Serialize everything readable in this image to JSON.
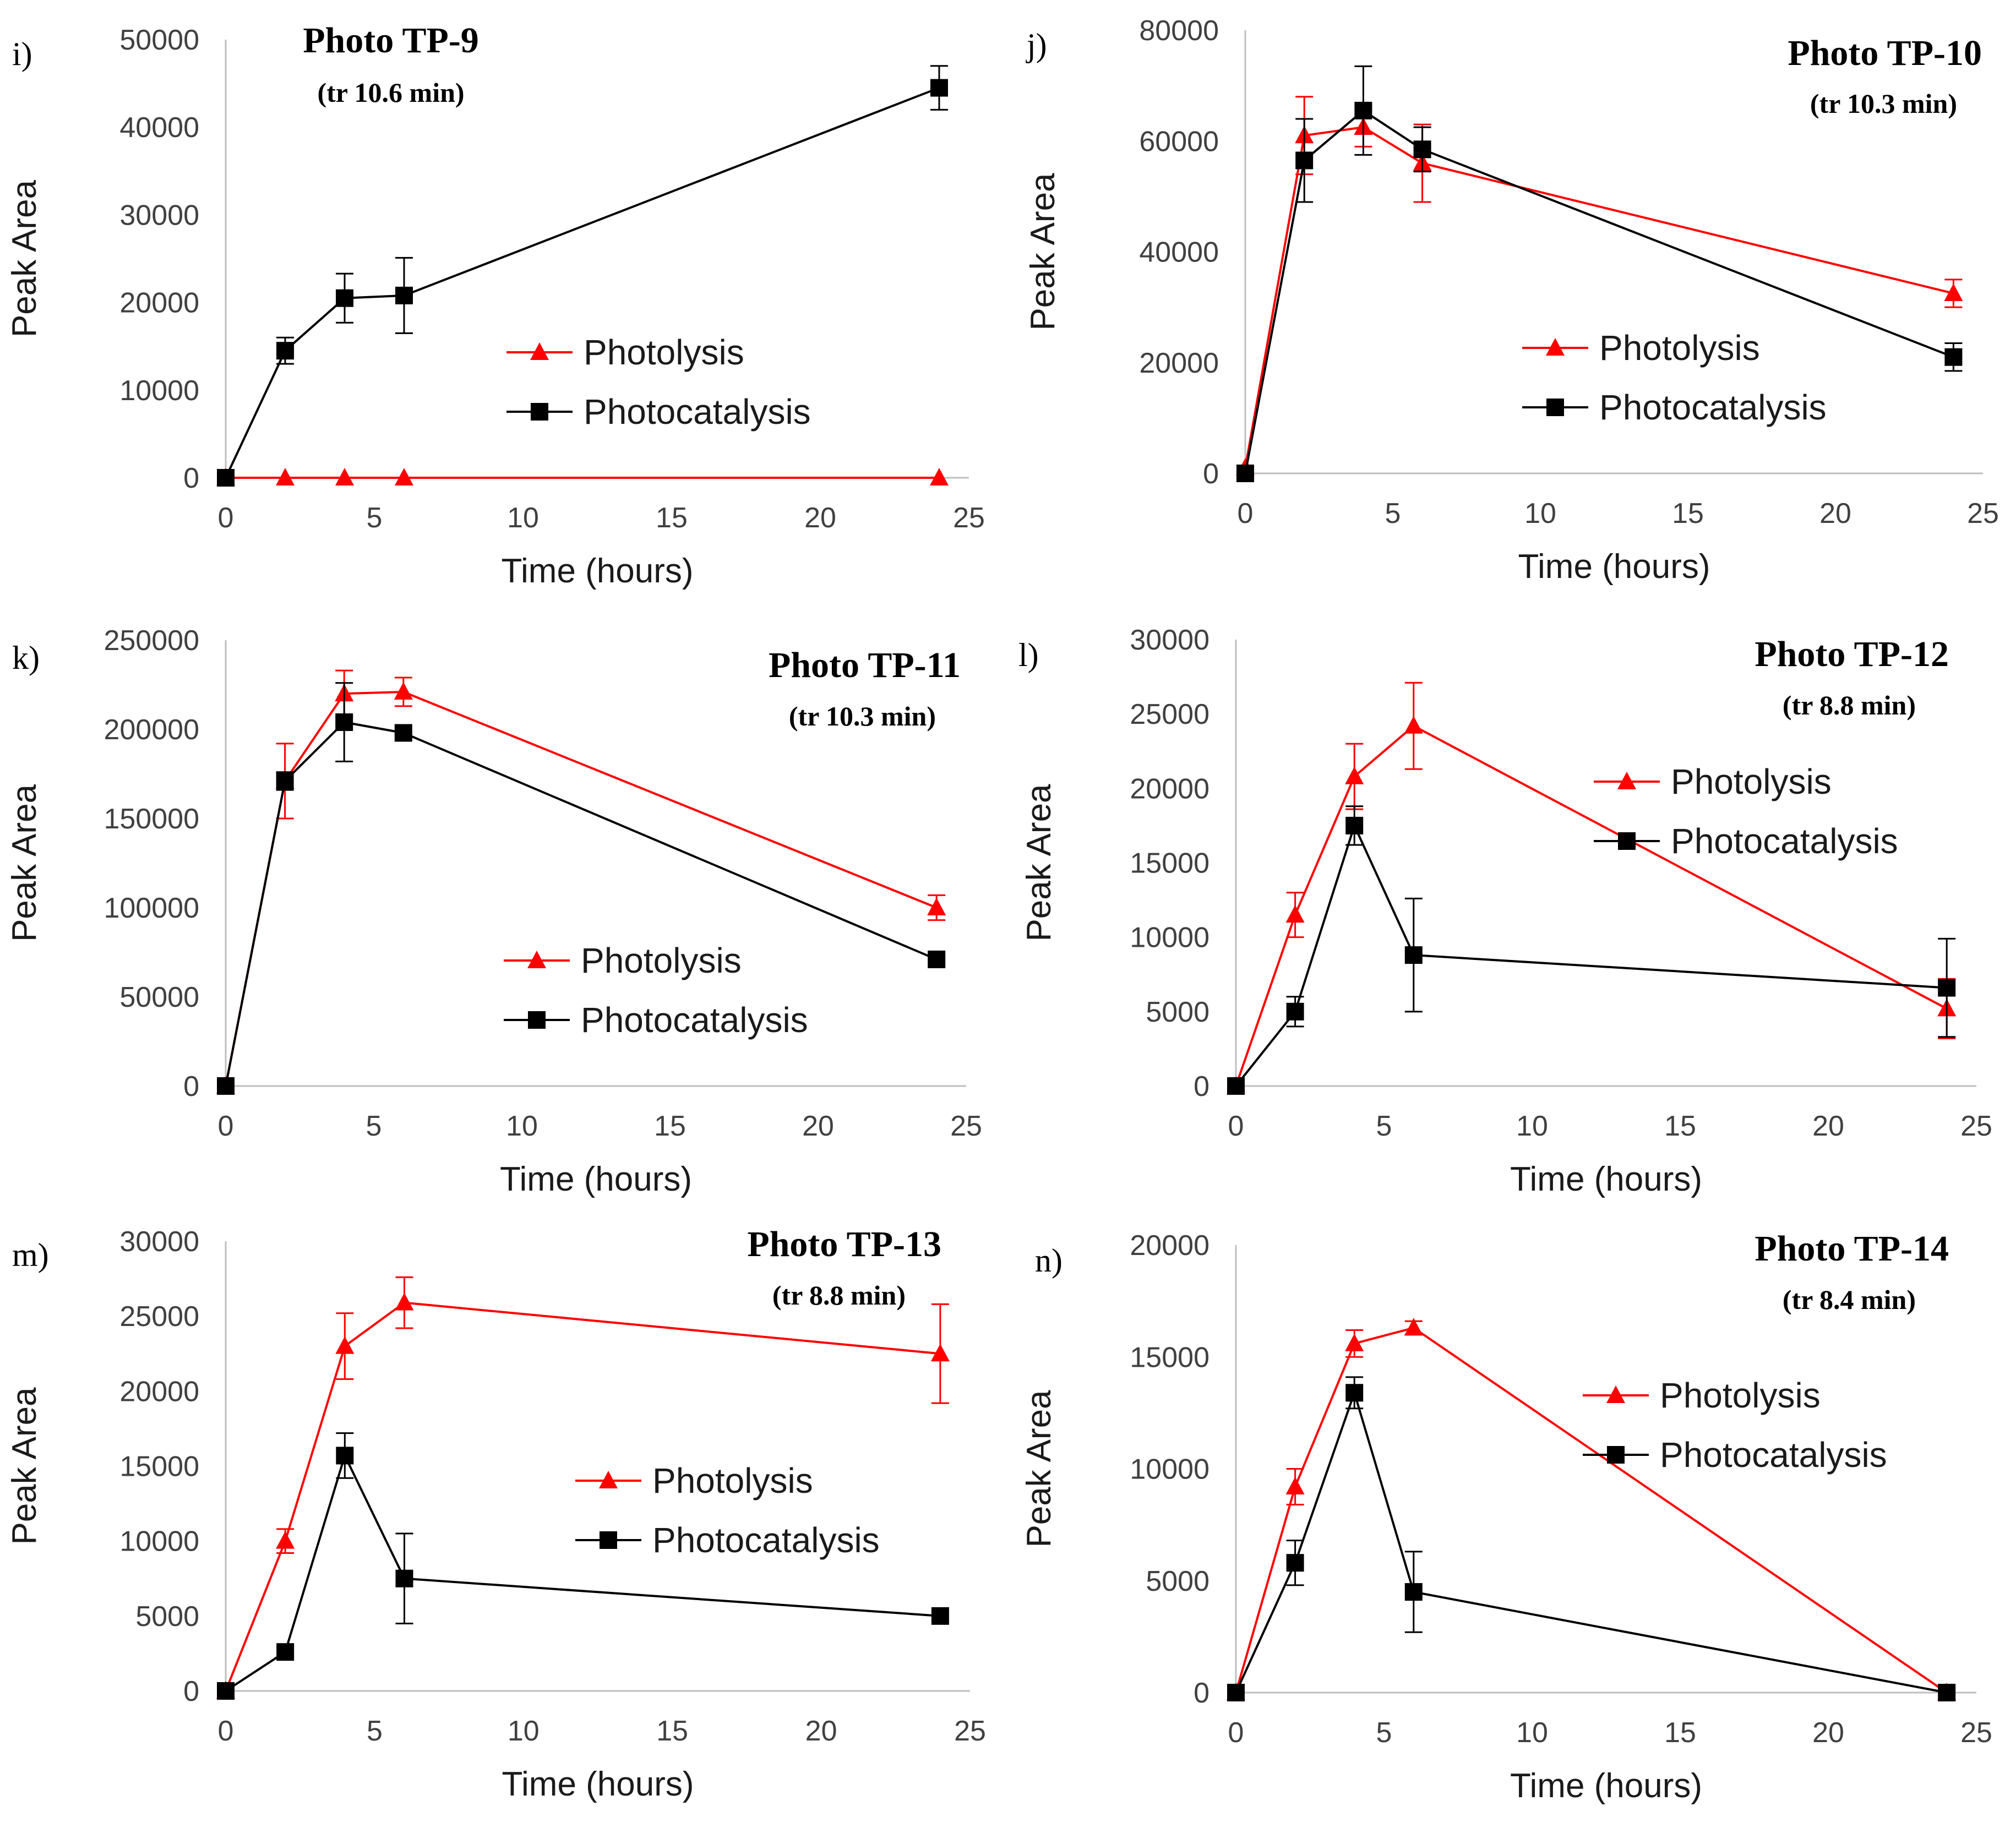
{
  "colors": {
    "photolysis": "#ff0000",
    "photocatalysis": "#000000",
    "axis": "#bfbfbf"
  },
  "chart_data": [
    {
      "type": "line",
      "letter": "i)",
      "title": "Photo TP-9",
      "subtitle": "(tr 10.6 min)",
      "xlabel": "Time (hours)",
      "ylabel": "Peak Area",
      "xlim": [
        0,
        25
      ],
      "xticks": [
        0,
        5,
        10,
        15,
        20,
        25
      ],
      "ylim": [
        0,
        50000
      ],
      "yticks": [
        0,
        10000,
        20000,
        30000,
        40000,
        50000
      ],
      "legend_position": "center-right",
      "series": [
        {
          "name": "Photolysis",
          "x": [
            0,
            2,
            4,
            6,
            24
          ],
          "y": [
            0,
            0,
            0,
            0,
            0
          ],
          "err": [
            0,
            0,
            0,
            0,
            0
          ]
        },
        {
          "name": "Photocatalysis",
          "x": [
            0,
            2,
            4,
            6,
            24
          ],
          "y": [
            0,
            14500,
            20500,
            20800,
            44500
          ],
          "err": [
            0,
            1500,
            2800,
            4300,
            2500
          ]
        }
      ]
    },
    {
      "type": "line",
      "letter": "j)",
      "title": "Photo TP-10",
      "subtitle": "(tr 10.3 min)",
      "xlabel": "Time (hours)",
      "ylabel": "Peak Area",
      "xlim": [
        0,
        25
      ],
      "xticks": [
        0,
        5,
        10,
        15,
        20,
        25
      ],
      "ylim": [
        0,
        80000
      ],
      "yticks": [
        0,
        20000,
        40000,
        60000,
        80000
      ],
      "legend_position": "center-right",
      "series": [
        {
          "name": "Photolysis",
          "x": [
            0,
            2,
            4,
            6,
            24
          ],
          "y": [
            1000,
            61000,
            62500,
            56000,
            32500
          ],
          "err": [
            0,
            7000,
            3500,
            7000,
            2500
          ]
        },
        {
          "name": "Photocatalysis",
          "x": [
            0,
            2,
            4,
            6,
            24
          ],
          "y": [
            0,
            56500,
            65500,
            58500,
            21000
          ],
          "err": [
            0,
            7500,
            8000,
            4000,
            2500
          ]
        }
      ]
    },
    {
      "type": "line",
      "letter": "k)",
      "title": "Photo TP-11",
      "subtitle": "(tr 10.3 min)",
      "xlabel": "Time (hours)",
      "ylabel": "Peak Area",
      "xlim": [
        0,
        25
      ],
      "xticks": [
        0,
        5,
        10,
        15,
        20,
        25
      ],
      "ylim": [
        0,
        250000
      ],
      "yticks": [
        0,
        50000,
        100000,
        150000,
        200000,
        250000
      ],
      "legend_position": "center-right",
      "series": [
        {
          "name": "Photolysis",
          "x": [
            0,
            2,
            4,
            6,
            24
          ],
          "y": [
            0,
            171000,
            220000,
            221000,
            100000
          ],
          "err": [
            0,
            21000,
            13000,
            8000,
            7000
          ]
        },
        {
          "name": "Photocatalysis",
          "x": [
            0,
            2,
            4,
            6,
            24
          ],
          "y": [
            0,
            171000,
            204000,
            198000,
            71000
          ],
          "err": [
            0,
            5000,
            22000,
            0,
            0
          ]
        }
      ]
    },
    {
      "type": "line",
      "letter": "l)",
      "title": "Photo TP-12",
      "subtitle": "(tr 8.8 min)",
      "xlabel": "Time (hours)",
      "ylabel": "Peak Area",
      "xlim": [
        0,
        25
      ],
      "xticks": [
        0,
        5,
        10,
        15,
        20,
        25
      ],
      "ylim": [
        0,
        30000
      ],
      "yticks": [
        0,
        5000,
        10000,
        15000,
        20000,
        25000,
        30000
      ],
      "legend_position": "top-right",
      "series": [
        {
          "name": "Photolysis",
          "x": [
            0,
            2,
            4,
            6,
            24
          ],
          "y": [
            0,
            11500,
            20800,
            24200,
            5200
          ],
          "err": [
            0,
            1500,
            2200,
            2900,
            2000
          ]
        },
        {
          "name": "Photocatalysis",
          "x": [
            0,
            2,
            4,
            6,
            24
          ],
          "y": [
            0,
            5000,
            17500,
            8800,
            6600
          ],
          "err": [
            0,
            1000,
            1300,
            3800,
            3300
          ]
        }
      ]
    },
    {
      "type": "line",
      "letter": "m)",
      "title": "Photo TP-13",
      "subtitle": "(tr 8.8 min)",
      "xlabel": "Time (hours)",
      "ylabel": "Peak Area",
      "xlim": [
        0,
        25
      ],
      "xticks": [
        0,
        5,
        10,
        15,
        20,
        25
      ],
      "ylim": [
        0,
        30000
      ],
      "yticks": [
        0,
        5000,
        10000,
        15000,
        20000,
        25000,
        30000
      ],
      "legend_position": "center-right",
      "series": [
        {
          "name": "Photolysis",
          "x": [
            0,
            2,
            4,
            6,
            24
          ],
          "y": [
            0,
            10000,
            23000,
            25900,
            22500
          ],
          "err": [
            0,
            800,
            2200,
            1700,
            3300
          ]
        },
        {
          "name": "Photocatalysis",
          "x": [
            0,
            2,
            4,
            6,
            24
          ],
          "y": [
            0,
            2600,
            15700,
            7500,
            5000
          ],
          "err": [
            0,
            0,
            1500,
            3000,
            0
          ]
        }
      ]
    },
    {
      "type": "line",
      "letter": "n)",
      "title": "Photo TP-14",
      "subtitle": "(tr 8.4 min)",
      "xlabel": "Time (hours)",
      "ylabel": "Peak Area",
      "xlim": [
        0,
        25
      ],
      "xticks": [
        0,
        5,
        10,
        15,
        20,
        25
      ],
      "ylim": [
        0,
        20000
      ],
      "yticks": [
        0,
        5000,
        10000,
        15000,
        20000
      ],
      "legend_position": "top-right",
      "series": [
        {
          "name": "Photolysis",
          "x": [
            0,
            2,
            4,
            6,
            24
          ],
          "y": [
            0,
            9200,
            15600,
            16300,
            0
          ],
          "err": [
            0,
            800,
            600,
            300,
            0
          ]
        },
        {
          "name": "Photocatalysis",
          "x": [
            0,
            2,
            4,
            6,
            24
          ],
          "y": [
            0,
            5800,
            13400,
            4500,
            0
          ],
          "err": [
            0,
            1000,
            700,
            1800,
            0
          ]
        }
      ]
    }
  ]
}
